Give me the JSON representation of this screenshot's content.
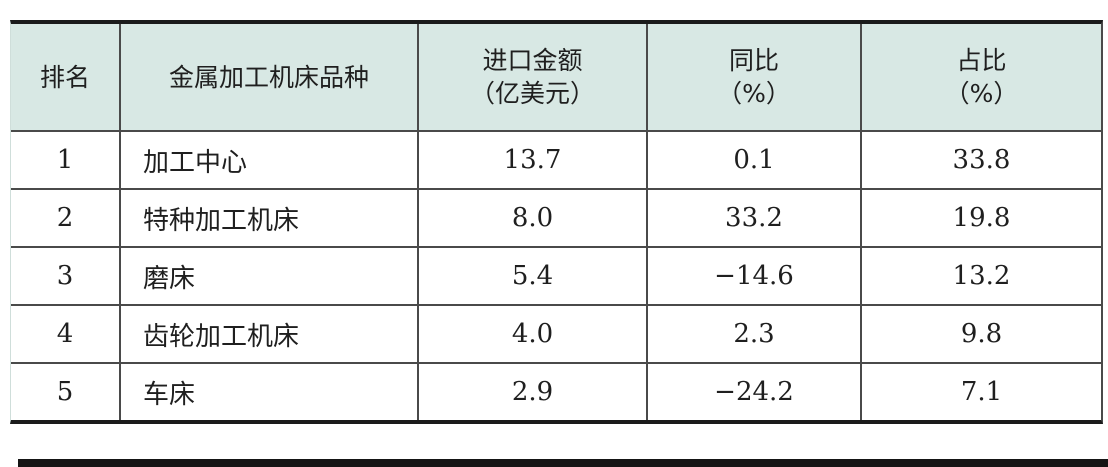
{
  "table": {
    "headers": {
      "rank": "排名",
      "variety": "金属加工机床品种",
      "import_amount_line1": "进口金额",
      "import_amount_line2": "（亿美元）",
      "yoy_line1": "同比",
      "yoy_line2": "（%）",
      "share_line1": "占比",
      "share_line2": "（%）"
    },
    "rows": [
      {
        "rank": "1",
        "variety": "加工中心",
        "import_amount": "13.7",
        "yoy": "0.1",
        "share": "33.8"
      },
      {
        "rank": "2",
        "variety": "特种加工机床",
        "import_amount": "8.0",
        "yoy": "33.2",
        "share": "19.8"
      },
      {
        "rank": "3",
        "variety": "磨床",
        "import_amount": "5.4",
        "yoy": "−14.6",
        "share": "13.2"
      },
      {
        "rank": "4",
        "variety": "齿轮加工机床",
        "import_amount": "4.0",
        "yoy": "2.3",
        "share": "9.8"
      },
      {
        "rank": "5",
        "variety": "车床",
        "import_amount": "2.9",
        "yoy": "−24.2",
        "share": "7.1"
      }
    ]
  },
  "colors": {
    "header_background": "#d8e8e4",
    "grid_line": "#4a4a4a",
    "heavy_rule": "#1b1b1b",
    "text": "#1f1f1f"
  },
  "chart_data": {
    "type": "table",
    "title": "",
    "columns": [
      "排名",
      "金属加工机床品种",
      "进口金额（亿美元）",
      "同比（%）",
      "占比（%）"
    ],
    "rows": [
      [
        1,
        "加工中心",
        13.7,
        0.1,
        33.8
      ],
      [
        2,
        "特种加工机床",
        8.0,
        33.2,
        19.8
      ],
      [
        3,
        "磨床",
        5.4,
        -14.6,
        13.2
      ],
      [
        4,
        "齿轮加工机床",
        4.0,
        2.3,
        9.8
      ],
      [
        5,
        "车床",
        2.9,
        -24.2,
        7.1
      ]
    ]
  }
}
